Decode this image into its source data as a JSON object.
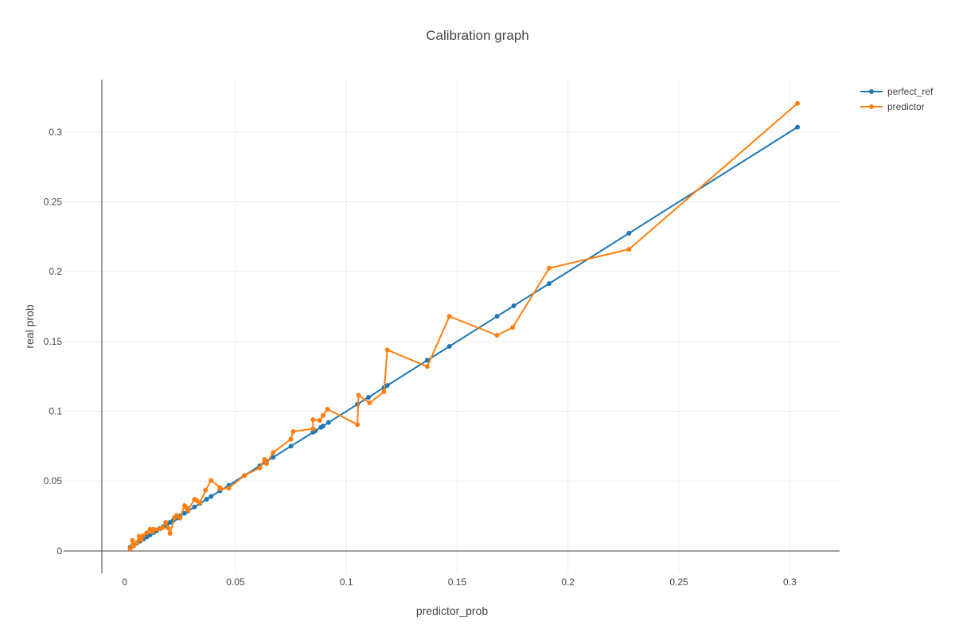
{
  "chart_data": {
    "type": "line",
    "title": "Calibration graph",
    "xlabel": "predictor_prob",
    "ylabel": "real prob",
    "xlim": [
      -0.0275,
      0.3225
    ],
    "ylim": [
      -0.016,
      0.3375
    ],
    "xticks": [
      {
        "value": 0,
        "label": "0"
      },
      {
        "value": 0.05,
        "label": "0.05"
      },
      {
        "value": 0.1,
        "label": "0.1"
      },
      {
        "value": 0.15,
        "label": "0.15"
      },
      {
        "value": 0.2,
        "label": "0.2"
      },
      {
        "value": 0.25,
        "label": "0.25"
      },
      {
        "value": 0.3,
        "label": "0.3"
      }
    ],
    "yticks": [
      {
        "value": 0,
        "label": "0"
      },
      {
        "value": 0.05,
        "label": "0.05"
      },
      {
        "value": 0.1,
        "label": "0.1"
      },
      {
        "value": 0.15,
        "label": "0.15"
      },
      {
        "value": 0.2,
        "label": "0.2"
      },
      {
        "value": 0.25,
        "label": "0.25"
      },
      {
        "value": 0.3,
        "label": "0.3"
      }
    ],
    "grid": true,
    "legend_position": "top-right",
    "series": [
      {
        "name": "perfect_ref",
        "color": "#1f77b4",
        "x": [
          0.0025,
          0.004,
          0.0055,
          0.007,
          0.0085,
          0.01,
          0.0115,
          0.013,
          0.0145,
          0.016,
          0.0175,
          0.019,
          0.0205,
          0.022,
          0.0235,
          0.025,
          0.027,
          0.0285,
          0.0315,
          0.034,
          0.037,
          0.039,
          0.043,
          0.047,
          0.054,
          0.061,
          0.064,
          0.067,
          0.075,
          0.085,
          0.086,
          0.0885,
          0.0895,
          0.092,
          0.105,
          0.11,
          0.117,
          0.1185,
          0.1365,
          0.1465,
          0.168,
          0.1755,
          0.1915,
          0.2275,
          0.3035
        ],
        "y": [
          0.0025,
          0.004,
          0.0055,
          0.007,
          0.0085,
          0.01,
          0.0115,
          0.013,
          0.0145,
          0.016,
          0.0175,
          0.019,
          0.0205,
          0.022,
          0.0235,
          0.025,
          0.027,
          0.0285,
          0.0315,
          0.034,
          0.037,
          0.039,
          0.043,
          0.047,
          0.054,
          0.061,
          0.064,
          0.067,
          0.075,
          0.085,
          0.086,
          0.0885,
          0.0895,
          0.092,
          0.105,
          0.11,
          0.117,
          0.1185,
          0.1365,
          0.1465,
          0.168,
          0.1755,
          0.1915,
          0.2275,
          0.3035
        ]
      },
      {
        "name": "predictor",
        "color": "#ff7f0e",
        "x": [
          0.0025,
          0.0035,
          0.004,
          0.0055,
          0.0065,
          0.0075,
          0.0085,
          0.01,
          0.0115,
          0.0125,
          0.013,
          0.015,
          0.017,
          0.0185,
          0.0195,
          0.0205,
          0.0225,
          0.0225,
          0.0235,
          0.025,
          0.027,
          0.028,
          0.0285,
          0.0315,
          0.0325,
          0.034,
          0.0365,
          0.039,
          0.043,
          0.043,
          0.047,
          0.054,
          0.061,
          0.063,
          0.064,
          0.067,
          0.075,
          0.076,
          0.085,
          0.085,
          0.088,
          0.0895,
          0.0915,
          0.105,
          0.1055,
          0.1105,
          0.117,
          0.1185,
          0.1365,
          0.1465,
          0.168,
          0.175,
          0.1915,
          0.2275,
          0.3035
        ],
        "y": [
          0.0015,
          0.0075,
          0.0035,
          0.006,
          0.0105,
          0.008,
          0.011,
          0.013,
          0.0155,
          0.0135,
          0.0155,
          0.0155,
          0.0165,
          0.0205,
          0.0165,
          0.0125,
          0.024,
          0.024,
          0.0255,
          0.0235,
          0.0325,
          0.031,
          0.029,
          0.037,
          0.036,
          0.0345,
          0.0435,
          0.0505,
          0.0455,
          0.0445,
          0.045,
          0.054,
          0.0595,
          0.0655,
          0.0625,
          0.0705,
          0.08,
          0.0855,
          0.0875,
          0.094,
          0.0935,
          0.097,
          0.1015,
          0.0905,
          0.1115,
          0.106,
          0.114,
          0.144,
          0.132,
          0.168,
          0.1545,
          0.16,
          0.2025,
          0.216,
          0.3205
        ]
      }
    ]
  }
}
